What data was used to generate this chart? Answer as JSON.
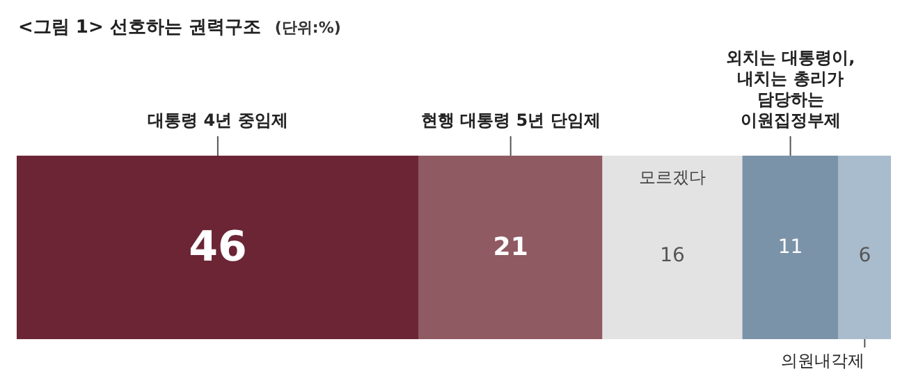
{
  "chart_data": {
    "type": "bar",
    "orientation": "horizontal",
    "stacked": true,
    "title": "<그림 1> 선호하는 권력구조",
    "subtitle": "(단위:%)",
    "categories": [
      null
    ],
    "data_labels": true,
    "legend": false,
    "series": [
      {
        "name": "대통령 4년 중임제",
        "color": "#6b2535",
        "values": [
          46
        ]
      },
      {
        "name": "현행 대통령 5년 단임제",
        "color": "#8f5a62",
        "values": [
          21
        ]
      },
      {
        "name": "모르겠다",
        "color": "#e3e3e3",
        "values": [
          16
        ]
      },
      {
        "name": "외치는 대통령이,\n내치는 총리가\n담당하는\n이원집정부제",
        "color": "#7b93a8",
        "values": [
          11
        ]
      },
      {
        "name": "의원내각제",
        "color": "#a8bccd",
        "values": [
          6
        ]
      }
    ]
  }
}
